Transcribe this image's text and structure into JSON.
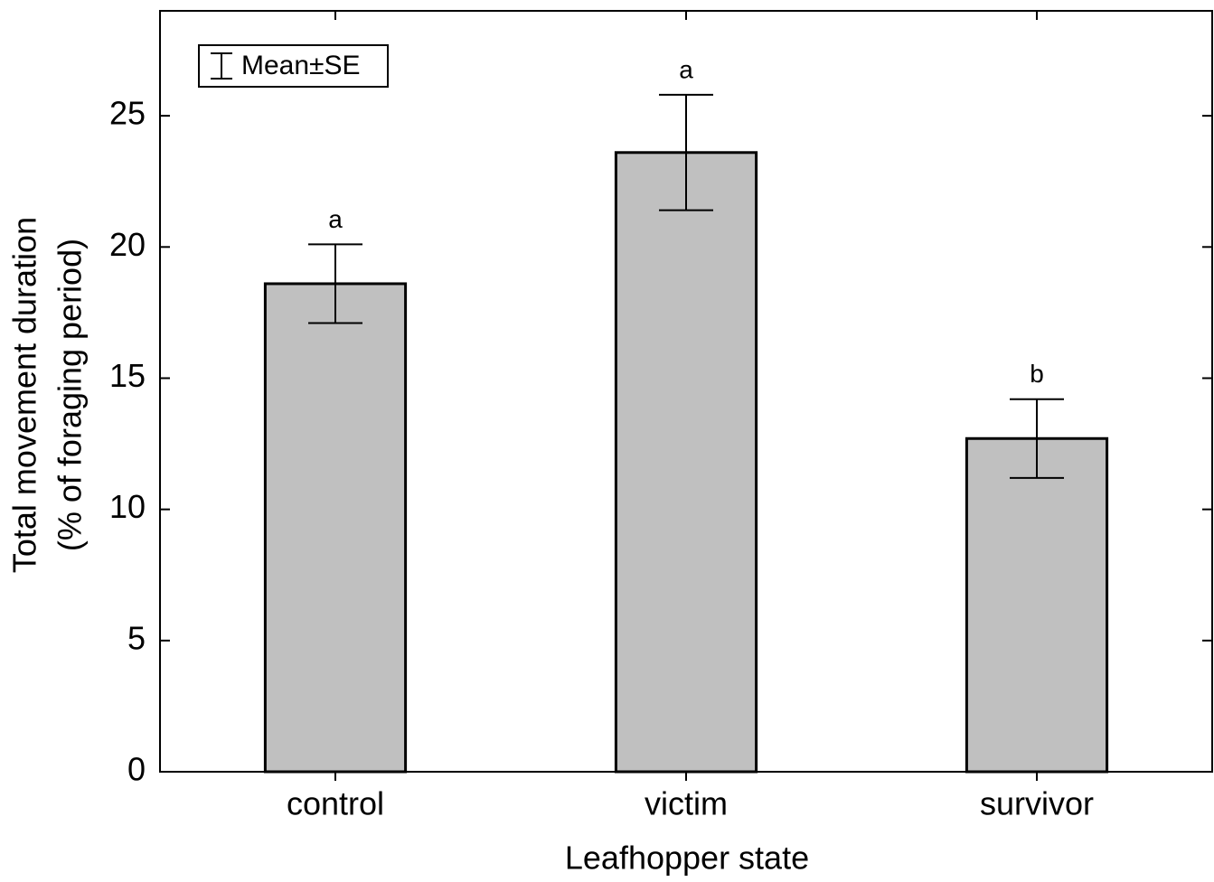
{
  "chart_data": {
    "type": "bar",
    "xlabel": "Leafhopper state",
    "ylabel": [
      "Total movement duration",
      "(% of foraging period)"
    ],
    "categories": [
      "control",
      "victim",
      "survivor"
    ],
    "values": [
      18.6,
      23.6,
      12.7
    ],
    "errors": [
      1.5,
      2.2,
      1.5
    ],
    "letters": [
      "a",
      "a",
      "b"
    ],
    "color": "#c0c0c0",
    "legend": "Mean±SE",
    "ylim": [
      0,
      29
    ],
    "yticks": [
      0,
      5,
      10,
      15,
      20,
      25
    ]
  }
}
